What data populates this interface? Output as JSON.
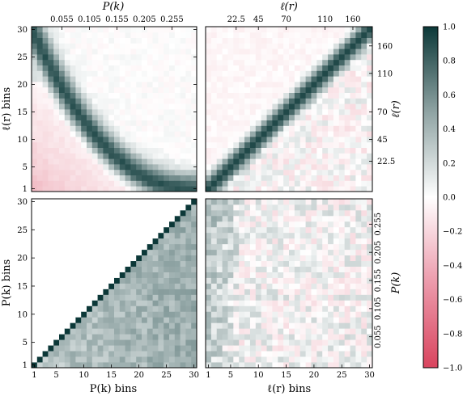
{
  "chart_data": {
    "type": "heatmap",
    "description_free": true,
    "n_bins": 30,
    "colormap": {
      "negative": "#d9445e",
      "zero": "#ffffff",
      "positive": "#0c3838",
      "range": [
        -1.0,
        1.0
      ]
    },
    "colorbar": {
      "ticks": [
        "1.0",
        "0.8",
        "0.6",
        "0.4",
        "0.2",
        "0.0",
        "−0.2",
        "−0.4",
        "−0.6",
        "−0.8",
        "−1.0"
      ],
      "tick_values": [
        1.0,
        0.8,
        0.6,
        0.4,
        0.2,
        0.0,
        -0.2,
        -0.4,
        -0.6,
        -0.8,
        -1.0
      ]
    },
    "panels": {
      "top_left": {
        "x_top_label": "P(k)",
        "x_top_ticks": [
          "0.055",
          "0.105",
          "0.155",
          "0.205",
          "0.255"
        ],
        "ylabel": "ℓ(r) bins",
        "y_ticks": [
          "30",
          "25",
          "20",
          "15",
          "10",
          "5",
          "1"
        ]
      },
      "top_right": {
        "x_top_label": "ℓ(r)",
        "x_top_ticks": [
          "22.5",
          "45",
          "70",
          "110",
          "160"
        ],
        "y_right_label": "ℓ(r)",
        "y_right_ticks": [
          "160",
          "110",
          "70",
          "45",
          "22.5"
        ]
      },
      "bottom_left": {
        "xlabel": "P(k) bins",
        "x_ticks": [
          "1",
          "5",
          "10",
          "15",
          "20",
          "25",
          "30"
        ],
        "ylabel": "P(k) bins",
        "y_ticks": [
          "30",
          "25",
          "20",
          "15",
          "10",
          "5",
          "1"
        ]
      },
      "bottom_right": {
        "xlabel": "ℓ(r) bins",
        "x_ticks": [
          "1",
          "5",
          "10",
          "15",
          "20",
          "25",
          "30"
        ],
        "y_right_label": "P(k)",
        "y_right_ticks": [
          "0.255",
          "0.205",
          "0.155",
          "0.105",
          "0.055"
        ]
      }
    }
  }
}
